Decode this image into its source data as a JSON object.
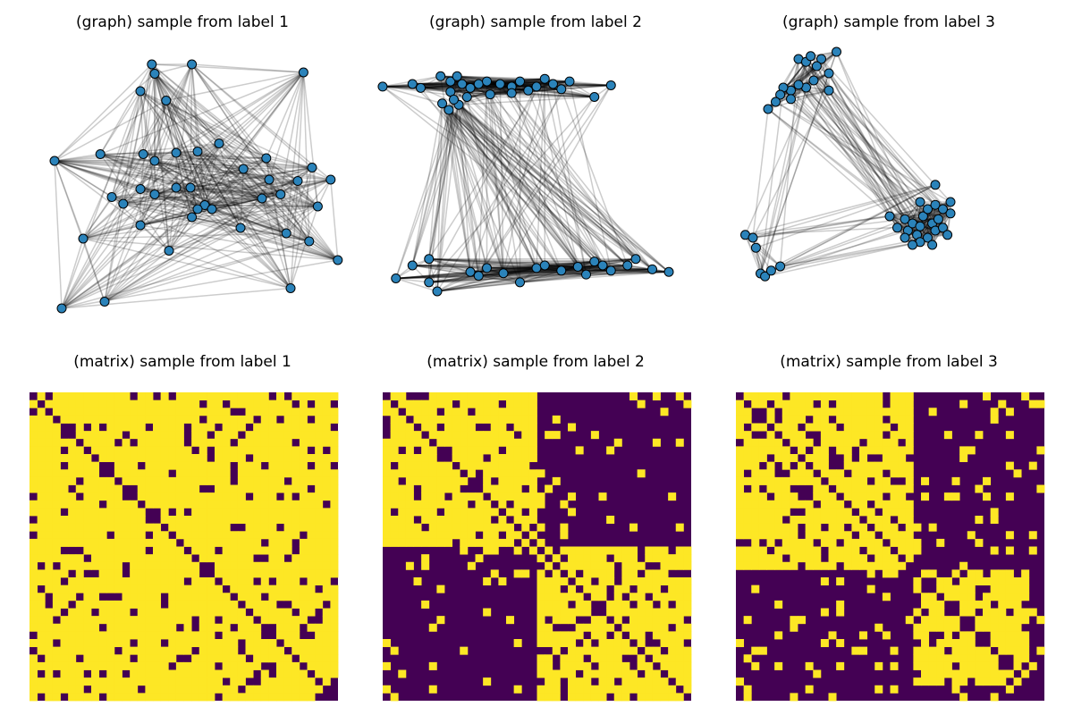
{
  "chart_data": [
    {
      "type": "network",
      "title": "(graph) sample from label 1",
      "nodes": [
        [
          -0.9,
          0.2
        ],
        [
          -0.85,
          -0.9
        ],
        [
          -0.7,
          -0.38
        ],
        [
          -0.55,
          -0.85
        ],
        [
          -0.58,
          0.25
        ],
        [
          -0.5,
          -0.07
        ],
        [
          -0.42,
          -0.12
        ],
        [
          -0.3,
          -0.28
        ],
        [
          -0.3,
          0.72
        ],
        [
          -0.28,
          0.25
        ],
        [
          -0.3,
          -0.01
        ],
        [
          -0.2,
          -0.05
        ],
        [
          -0.22,
          0.92
        ],
        [
          -0.2,
          0.85
        ],
        [
          -0.2,
          0.2
        ],
        [
          -0.12,
          0.65
        ],
        [
          -0.1,
          -0.47
        ],
        [
          -0.05,
          0.0
        ],
        [
          -0.05,
          0.26
        ],
        [
          0.05,
          0.0
        ],
        [
          0.06,
          -0.22
        ],
        [
          0.06,
          0.92
        ],
        [
          0.1,
          0.27
        ],
        [
          0.15,
          -0.13
        ],
        [
          0.2,
          -0.16
        ],
        [
          0.25,
          0.33
        ],
        [
          0.4,
          -0.3
        ],
        [
          0.42,
          0.14
        ],
        [
          0.55,
          -0.08
        ],
        [
          0.58,
          0.22
        ],
        [
          0.6,
          0.06
        ],
        [
          0.68,
          -0.05
        ],
        [
          0.72,
          -0.34
        ],
        [
          0.8,
          0.05
        ],
        [
          0.9,
          0.15
        ],
        [
          0.88,
          -0.4
        ],
        [
          1.03,
          0.06
        ],
        [
          0.84,
          0.86
        ],
        [
          0.75,
          -0.75
        ],
        [
          0.94,
          -0.14
        ],
        [
          1.08,
          -0.54
        ],
        [
          0.1,
          -0.16
        ]
      ]
    },
    {
      "type": "network",
      "title": "(graph) sample from label 2",
      "nodes": [
        [
          -0.93,
          0.78
        ],
        [
          -0.75,
          0.8
        ],
        [
          -0.7,
          0.77
        ],
        [
          -0.58,
          0.86
        ],
        [
          -0.52,
          0.82
        ],
        [
          -0.52,
          0.74
        ],
        [
          -0.45,
          0.8
        ],
        [
          -0.42,
          0.7
        ],
        [
          -0.48,
          0.86
        ],
        [
          -0.4,
          0.77
        ],
        [
          -0.35,
          0.8
        ],
        [
          -0.3,
          0.82
        ],
        [
          -0.28,
          0.72
        ],
        [
          -0.22,
          0.8
        ],
        [
          -0.15,
          0.78
        ],
        [
          -0.15,
          0.73
        ],
        [
          -0.1,
          0.82
        ],
        [
          -0.05,
          0.75
        ],
        [
          0.0,
          0.78
        ],
        [
          0.05,
          0.84
        ],
        [
          0.1,
          0.8
        ],
        [
          0.15,
          0.76
        ],
        [
          0.2,
          0.82
        ],
        [
          0.35,
          0.7
        ],
        [
          0.45,
          0.79
        ],
        [
          -0.57,
          0.65
        ],
        [
          -0.47,
          0.64
        ],
        [
          -0.53,
          0.6
        ],
        [
          -0.5,
          0.68
        ],
        [
          -0.85,
          -0.7
        ],
        [
          -0.75,
          -0.6
        ],
        [
          -0.65,
          -0.73
        ],
        [
          -0.6,
          -0.8
        ],
        [
          -0.4,
          -0.65
        ],
        [
          -0.35,
          -0.68
        ],
        [
          -0.3,
          -0.62
        ],
        [
          -0.2,
          -0.66
        ],
        [
          -0.1,
          -0.73
        ],
        [
          0.0,
          -0.62
        ],
        [
          0.05,
          -0.6
        ],
        [
          0.15,
          -0.64
        ],
        [
          0.25,
          -0.61
        ],
        [
          0.3,
          -0.67
        ],
        [
          0.4,
          -0.6
        ],
        [
          0.45,
          -0.64
        ],
        [
          0.55,
          -0.6
        ],
        [
          0.6,
          -0.55
        ],
        [
          0.7,
          -0.63
        ],
        [
          0.8,
          -0.65
        ],
        [
          -0.65,
          -0.55
        ],
        [
          0.35,
          -0.57
        ]
      ]
    },
    {
      "type": "network",
      "title": "(graph) sample from label 3",
      "nodes": [
        [
          -0.6,
          0.9
        ],
        [
          -0.55,
          0.88
        ],
        [
          -0.52,
          0.92
        ],
        [
          -0.45,
          0.9
        ],
        [
          -0.48,
          0.85
        ],
        [
          -0.4,
          0.8
        ],
        [
          -0.5,
          0.75
        ],
        [
          -0.55,
          0.7
        ],
        [
          -0.6,
          0.72
        ],
        [
          -0.65,
          0.68
        ],
        [
          -0.7,
          0.7
        ],
        [
          -0.72,
          0.65
        ],
        [
          -0.65,
          0.62
        ],
        [
          -0.75,
          0.6
        ],
        [
          -0.8,
          0.55
        ],
        [
          -0.4,
          0.68
        ],
        [
          -0.35,
          0.95
        ],
        [
          0.0,
          -0.2
        ],
        [
          0.05,
          -0.28
        ],
        [
          0.1,
          -0.22
        ],
        [
          0.12,
          -0.3
        ],
        [
          0.15,
          -0.25
        ],
        [
          0.18,
          -0.33
        ],
        [
          0.2,
          -0.27
        ],
        [
          0.22,
          -0.2
        ],
        [
          0.25,
          -0.35
        ],
        [
          0.28,
          -0.25
        ],
        [
          0.3,
          -0.3
        ],
        [
          0.32,
          -0.22
        ],
        [
          0.35,
          -0.28
        ],
        [
          0.38,
          -0.33
        ],
        [
          0.4,
          -0.18
        ],
        [
          0.2,
          -0.1
        ],
        [
          0.25,
          -0.15
        ],
        [
          0.3,
          -0.12
        ],
        [
          0.35,
          -0.15
        ],
        [
          0.4,
          -0.1
        ],
        [
          0.28,
          -0.4
        ],
        [
          0.2,
          -0.38
        ],
        [
          0.15,
          -0.4
        ],
        [
          0.1,
          -0.35
        ],
        [
          -0.95,
          -0.33
        ],
        [
          -0.88,
          -0.42
        ],
        [
          -0.85,
          -0.6
        ],
        [
          -0.82,
          -0.62
        ],
        [
          -0.78,
          -0.58
        ],
        [
          -0.72,
          -0.55
        ],
        [
          -0.9,
          -0.35
        ],
        [
          0.3,
          0.02
        ]
      ]
    }
  ],
  "titles": {
    "g1": "(graph) sample from label 1",
    "g2": "(graph) sample from label 2",
    "g3": "(graph) sample from label 3",
    "m1": "(matrix) sample from label 1",
    "m2": "(matrix) sample from label 2",
    "m3": "(matrix) sample from label 3"
  },
  "colors": {
    "node": "#2b83ba",
    "node_edge": "#000000",
    "edge": "#000000",
    "matrix_on": "#fde725",
    "matrix_off": "#440154"
  }
}
